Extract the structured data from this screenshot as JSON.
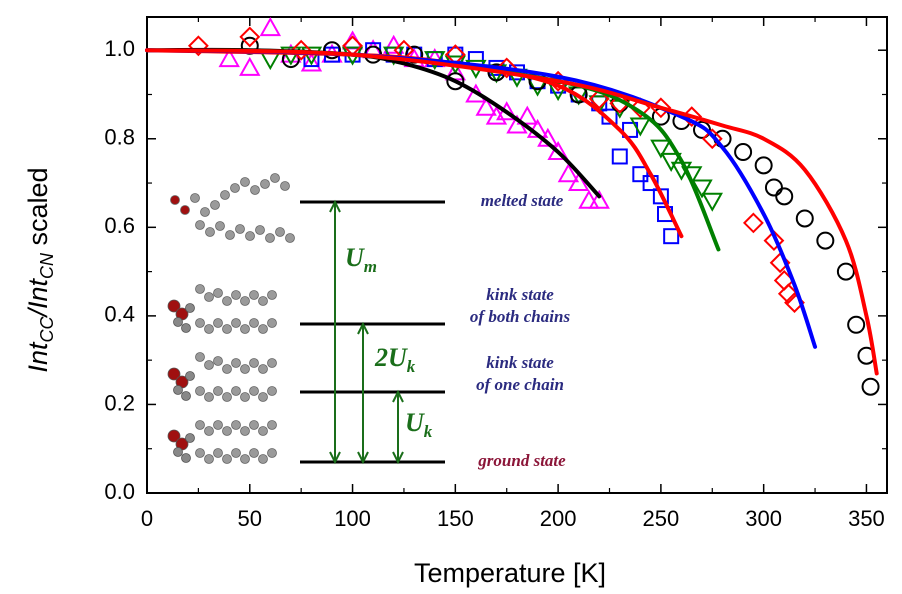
{
  "chart_data": {
    "type": "scatter",
    "xlabel": "Temperature [K]",
    "ylabel": [
      "Int",
      "CC",
      "/Int",
      "CN",
      " scaled"
    ],
    "xlim": [
      0,
      360
    ],
    "ylim": [
      0,
      1.075
    ],
    "xticks": [
      0,
      50,
      100,
      150,
      200,
      250,
      300,
      350
    ],
    "yticks": [
      {
        "value": 0,
        "label": "0.0"
      },
      {
        "value": 0.2,
        "label": "0.2"
      },
      {
        "value": 0.4,
        "label": "0.4"
      },
      {
        "value": 0.6,
        "label": "0.6"
      },
      {
        "value": 0.8,
        "label": "0.8"
      },
      {
        "value": 1,
        "label": "1.0"
      }
    ],
    "xminorticks": [
      25,
      75,
      125,
      175,
      225,
      275,
      325
    ],
    "yminorticks": [
      0.1,
      0.3,
      0.5,
      0.7,
      0.9
    ],
    "series": [
      {
        "marker": "triangle",
        "color": "#ff00ff",
        "x": [
          40,
          50,
          60,
          70,
          80,
          90,
          100,
          110,
          120,
          130,
          140,
          150,
          160,
          165,
          170,
          175,
          180,
          185,
          190,
          195,
          200,
          205,
          210,
          215,
          220
        ],
        "values": [
          0.98,
          0.96,
          1.05,
          0.99,
          0.97,
          0.99,
          1.02,
          1.0,
          1.01,
          0.98,
          0.98,
          0.95,
          0.9,
          0.87,
          0.85,
          0.86,
          0.83,
          0.85,
          0.82,
          0.8,
          0.77,
          0.72,
          0.7,
          0.66,
          0.66
        ]
      },
      {
        "marker": "square",
        "color": "#0000ff",
        "x": [
          80,
          90,
          100,
          110,
          120,
          130,
          140,
          150,
          160,
          170,
          180,
          190,
          200,
          210,
          220,
          225,
          230,
          235,
          240,
          245,
          250,
          252,
          255
        ],
        "values": [
          0.98,
          0.99,
          0.99,
          1.0,
          0.99,
          0.99,
          0.98,
          0.99,
          0.98,
          0.96,
          0.95,
          0.93,
          0.92,
          0.9,
          0.88,
          0.85,
          0.76,
          0.82,
          0.72,
          0.7,
          0.67,
          0.63,
          0.58
        ]
      },
      {
        "marker": "triangle-down",
        "color": "#008000",
        "x": [
          60,
          70,
          80,
          100,
          120,
          140,
          150,
          160,
          170,
          180,
          190,
          200,
          210,
          220,
          230,
          240,
          250,
          255,
          260,
          265,
          270,
          275
        ],
        "values": [
          0.98,
          0.99,
          0.99,
          0.99,
          0.99,
          0.98,
          0.97,
          0.96,
          0.95,
          0.94,
          0.92,
          0.91,
          0.9,
          0.88,
          0.87,
          0.83,
          0.78,
          0.75,
          0.73,
          0.72,
          0.69,
          0.66
        ]
      },
      {
        "marker": "circle",
        "color": "#000000",
        "x": [
          50,
          70,
          90,
          110,
          130,
          150,
          170,
          190,
          210,
          230,
          250,
          260,
          270,
          280,
          290,
          300,
          305,
          310,
          320,
          330,
          340,
          345,
          350,
          352
        ],
        "values": [
          1.01,
          0.98,
          1.0,
          0.99,
          0.99,
          0.93,
          0.95,
          0.93,
          0.9,
          0.88,
          0.85,
          0.84,
          0.82,
          0.8,
          0.77,
          0.74,
          0.69,
          0.67,
          0.62,
          0.57,
          0.5,
          0.38,
          0.31,
          0.24
        ]
      },
      {
        "marker": "diamond",
        "color": "#ff0000",
        "x": [
          25,
          50,
          75,
          100,
          125,
          150,
          175,
          200,
          220,
          230,
          240,
          250,
          265,
          275,
          295,
          305,
          308,
          310,
          312,
          315
        ],
        "values": [
          1.01,
          1.03,
          1.0,
          1.01,
          1.0,
          0.99,
          0.96,
          0.93,
          0.89,
          0.88,
          0.87,
          0.87,
          0.85,
          0.8,
          0.61,
          0.57,
          0.52,
          0.48,
          0.45,
          0.43
        ]
      },
      {
        "line": true,
        "color": "#000000",
        "x": [
          0,
          50,
          100,
          125,
          150,
          175,
          200,
          220
        ],
        "values": [
          1.0,
          1.0,
          0.99,
          0.97,
          0.93,
          0.86,
          0.77,
          0.67
        ]
      },
      {
        "line": true,
        "color": "#ff0000",
        "x": [
          0,
          100,
          150,
          200,
          230,
          245,
          260
        ],
        "values": [
          1.0,
          0.99,
          0.97,
          0.92,
          0.82,
          0.72,
          0.58
        ]
      },
      {
        "line": true,
        "color": "#008000",
        "x": [
          0,
          100,
          200,
          240,
          260,
          278
        ],
        "values": [
          1.0,
          0.99,
          0.93,
          0.86,
          0.75,
          0.55
        ]
      },
      {
        "line": true,
        "color": "#0000ff",
        "x": [
          0,
          100,
          200,
          260,
          280,
          300,
          315,
          325
        ],
        "values": [
          1.0,
          0.99,
          0.94,
          0.85,
          0.78,
          0.63,
          0.47,
          0.33
        ]
      },
      {
        "line": true,
        "color": "#ff0000",
        "x": [
          0,
          100,
          200,
          250,
          280,
          300,
          320,
          340,
          350,
          355
        ],
        "values": [
          1.0,
          0.99,
          0.93,
          0.87,
          0.83,
          0.8,
          0.73,
          0.57,
          0.4,
          0.27
        ]
      }
    ],
    "inset": {
      "levels": [
        "melted state",
        [
          "kink state",
          "of both chains"
        ],
        [
          "kink state",
          "of one chain"
        ],
        "ground state"
      ],
      "energies": [
        {
          "text": "U",
          "sub": "m"
        },
        {
          "text": "2U",
          "sub": "k"
        },
        {
          "text": "U",
          "sub": "k"
        }
      ]
    }
  }
}
